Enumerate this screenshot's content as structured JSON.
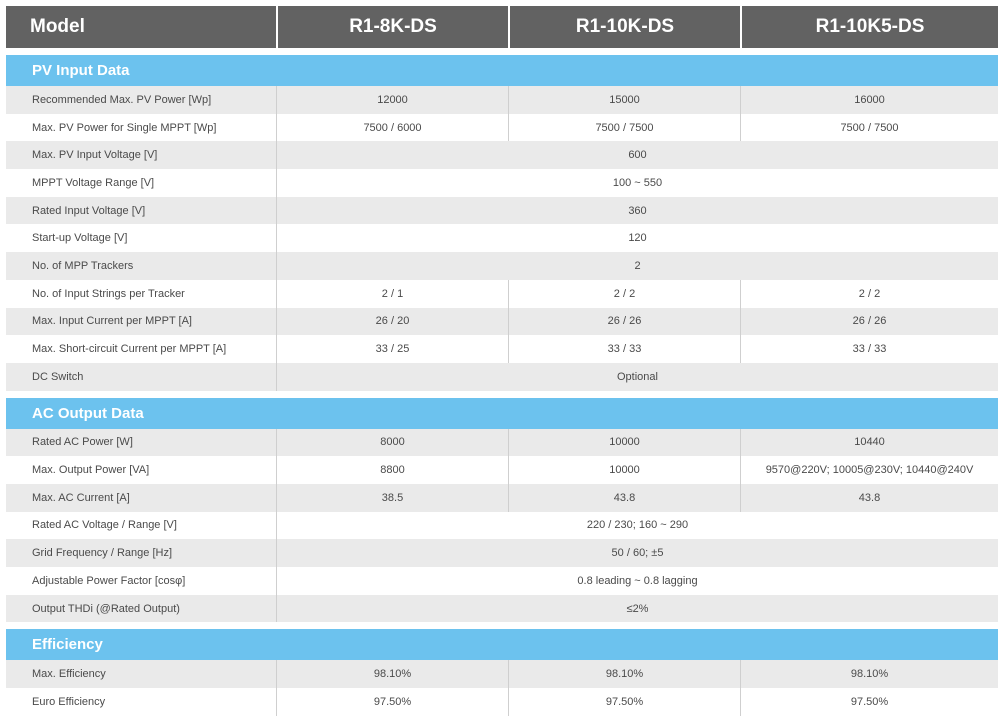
{
  "header": {
    "model_label": "Model",
    "models": [
      "R1-8K-DS",
      "R1-10K-DS",
      "R1-10K5-DS"
    ]
  },
  "sections": [
    {
      "title": "PV Input Data",
      "rows": [
        {
          "label": "Recommended Max. PV Power [Wp]",
          "values": [
            "12000",
            "15000",
            "16000"
          ]
        },
        {
          "label": "Max. PV Power for Single MPPT [Wp]",
          "values": [
            "7500 / 6000",
            "7500 / 7500",
            "7500 / 7500"
          ]
        },
        {
          "label": "Max. PV Input Voltage [V]",
          "span": "600"
        },
        {
          "label": "MPPT Voltage Range [V]",
          "span": "100 ~ 550"
        },
        {
          "label": "Rated Input Voltage [V]",
          "span": "360"
        },
        {
          "label": "Start-up Voltage [V]",
          "span": "120"
        },
        {
          "label": "No. of MPP Trackers",
          "span": "2"
        },
        {
          "label": "No. of Input Strings per Tracker",
          "values": [
            "2 / 1",
            "2 / 2",
            "2 / 2"
          ]
        },
        {
          "label": "Max. Input Current per MPPT [A]",
          "values": [
            "26 / 20",
            "26 / 26",
            "26 / 26"
          ]
        },
        {
          "label": "Max. Short-circuit Current per MPPT [A]",
          "values": [
            "33 / 25",
            "33 / 33",
            "33 / 33"
          ]
        },
        {
          "label": "DC Switch",
          "span": "Optional"
        }
      ]
    },
    {
      "title": "AC Output Data",
      "rows": [
        {
          "label": "Rated AC Power [W]",
          "values": [
            "8000",
            "10000",
            "10440"
          ]
        },
        {
          "label": "Max. Output Power [VA]",
          "values": [
            "8800",
            "10000",
            "9570@220V; 10005@230V; 10440@240V"
          ]
        },
        {
          "label": "Max. AC Current [A]",
          "values": [
            "38.5",
            "43.8",
            "43.8"
          ]
        },
        {
          "label": "Rated AC Voltage / Range [V]",
          "span": "220 / 230; 160 ~ 290"
        },
        {
          "label": "Grid Frequency / Range [Hz]",
          "span": "50 / 60; ±5"
        },
        {
          "label": "Adjustable Power Factor [cosφ]",
          "span": "0.8 leading ~ 0.8 lagging"
        },
        {
          "label": "Output THDi (@Rated Output)",
          "span": "≤2%"
        }
      ]
    },
    {
      "title": "Efficiency",
      "rows": [
        {
          "label": "Max. Efficiency",
          "values": [
            "98.10%",
            "98.10%",
            "98.10%"
          ]
        },
        {
          "label": "Euro Efficiency",
          "values": [
            "97.50%",
            "97.50%",
            "97.50%"
          ]
        }
      ]
    }
  ]
}
